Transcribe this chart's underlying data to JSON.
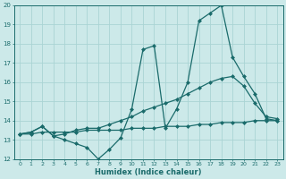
{
  "x": [
    0,
    1,
    2,
    3,
    4,
    5,
    6,
    7,
    8,
    9,
    10,
    11,
    12,
    13,
    14,
    15,
    16,
    17,
    18,
    19,
    20,
    21,
    22,
    23
  ],
  "line1": [
    13.3,
    13.4,
    13.7,
    13.2,
    13.0,
    12.8,
    12.6,
    12.0,
    12.5,
    13.1,
    14.6,
    17.7,
    17.9,
    13.6,
    14.6,
    16.0,
    19.2,
    19.6,
    20.0,
    17.3,
    16.3,
    15.4,
    14.1,
    14.0
  ],
  "line2": [
    13.3,
    13.4,
    13.7,
    13.2,
    13.3,
    13.5,
    13.6,
    13.6,
    13.8,
    14.0,
    14.2,
    14.5,
    14.7,
    14.9,
    15.1,
    15.4,
    15.7,
    16.0,
    16.2,
    16.3,
    15.8,
    14.9,
    14.2,
    14.1
  ],
  "line3": [
    13.3,
    13.3,
    13.4,
    13.4,
    13.4,
    13.4,
    13.5,
    13.5,
    13.5,
    13.5,
    13.6,
    13.6,
    13.6,
    13.7,
    13.7,
    13.7,
    13.8,
    13.8,
    13.9,
    13.9,
    13.9,
    14.0,
    14.0,
    14.0
  ],
  "line_color": "#1a6b6b",
  "bg_color": "#cce9e9",
  "grid_color": "#aad4d4",
  "xlabel": "Humidex (Indice chaleur)",
  "ylim": [
    12,
    20
  ],
  "xlim": [
    -0.5,
    23.5
  ],
  "yticks": [
    12,
    13,
    14,
    15,
    16,
    17,
    18,
    19,
    20
  ],
  "xticks": [
    0,
    1,
    2,
    3,
    4,
    5,
    6,
    7,
    8,
    9,
    10,
    11,
    12,
    13,
    14,
    15,
    16,
    17,
    18,
    19,
    20,
    21,
    22,
    23
  ],
  "marker": "D",
  "marker_size": 2.0,
  "linewidth": 0.9
}
